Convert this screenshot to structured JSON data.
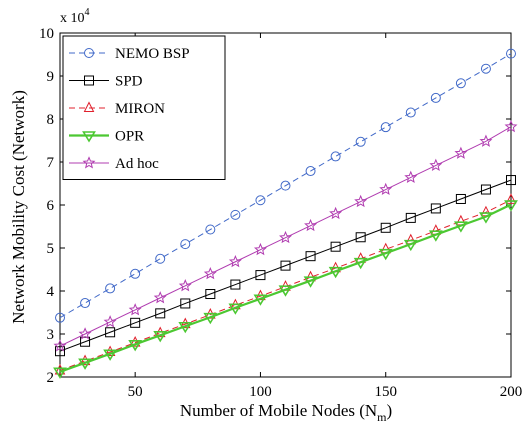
{
  "chart_data": {
    "type": "line",
    "xlabel": "Number of Mobile Nodes (N",
    "xlabel_sub": "m",
    "xlabel_end": ")",
    "ylabel": "Network Mobility Cost (Network)",
    "y_multiplier": "x 10",
    "y_multiplier_exp": "4",
    "xlim": [
      20,
      200
    ],
    "ylim": [
      2,
      10
    ],
    "x_ticks": [
      "50",
      "100",
      "150",
      "200"
    ],
    "y_ticks": [
      "2",
      "3",
      "4",
      "5",
      "6",
      "7",
      "8",
      "9",
      "10"
    ],
    "grid": false,
    "legend_position": "top-left",
    "x": [
      20,
      30,
      40,
      50,
      60,
      70,
      80,
      90,
      100,
      110,
      120,
      130,
      140,
      150,
      160,
      170,
      180,
      190,
      200
    ],
    "series": [
      {
        "name": "NEMO BSP",
        "color": "#4169c8",
        "marker": "circle",
        "line": "dashed",
        "values": [
          3.38,
          3.72,
          4.06,
          4.4,
          4.75,
          5.09,
          5.43,
          5.77,
          6.11,
          6.45,
          6.79,
          7.13,
          7.47,
          7.81,
          8.15,
          8.49,
          8.83,
          9.17,
          9.52
        ]
      },
      {
        "name": "SPD",
        "color": "#000000",
        "marker": "square",
        "line": "solid",
        "values": [
          2.6,
          2.82,
          3.04,
          3.26,
          3.48,
          3.71,
          3.93,
          4.15,
          4.37,
          4.59,
          4.81,
          5.03,
          5.25,
          5.47,
          5.7,
          5.92,
          6.14,
          6.36,
          6.58
        ]
      },
      {
        "name": "MIRON",
        "color": "#e0202c",
        "marker": "triangle-up",
        "line": "dashed",
        "values": [
          2.15,
          2.37,
          2.58,
          2.8,
          3.02,
          3.23,
          3.45,
          3.67,
          3.88,
          4.1,
          4.32,
          4.53,
          4.75,
          4.97,
          5.18,
          5.4,
          5.62,
          5.83,
          6.12
        ]
      },
      {
        "name": "OPR",
        "color": "#4cc832",
        "marker": "triangle-down",
        "line": "solid",
        "values": [
          2.12,
          2.33,
          2.54,
          2.76,
          2.97,
          3.18,
          3.39,
          3.61,
          3.82,
          4.03,
          4.24,
          4.46,
          4.67,
          4.88,
          5.09,
          5.31,
          5.52,
          5.73,
          6.01
        ]
      },
      {
        "name": "Ad hoc",
        "color": "#b03cb0",
        "marker": "star",
        "line": "solid",
        "values": [
          2.72,
          3.0,
          3.28,
          3.56,
          3.84,
          4.12,
          4.4,
          4.68,
          4.96,
          5.24,
          5.52,
          5.8,
          6.08,
          6.36,
          6.64,
          6.92,
          7.2,
          7.48,
          7.82
        ]
      }
    ]
  }
}
